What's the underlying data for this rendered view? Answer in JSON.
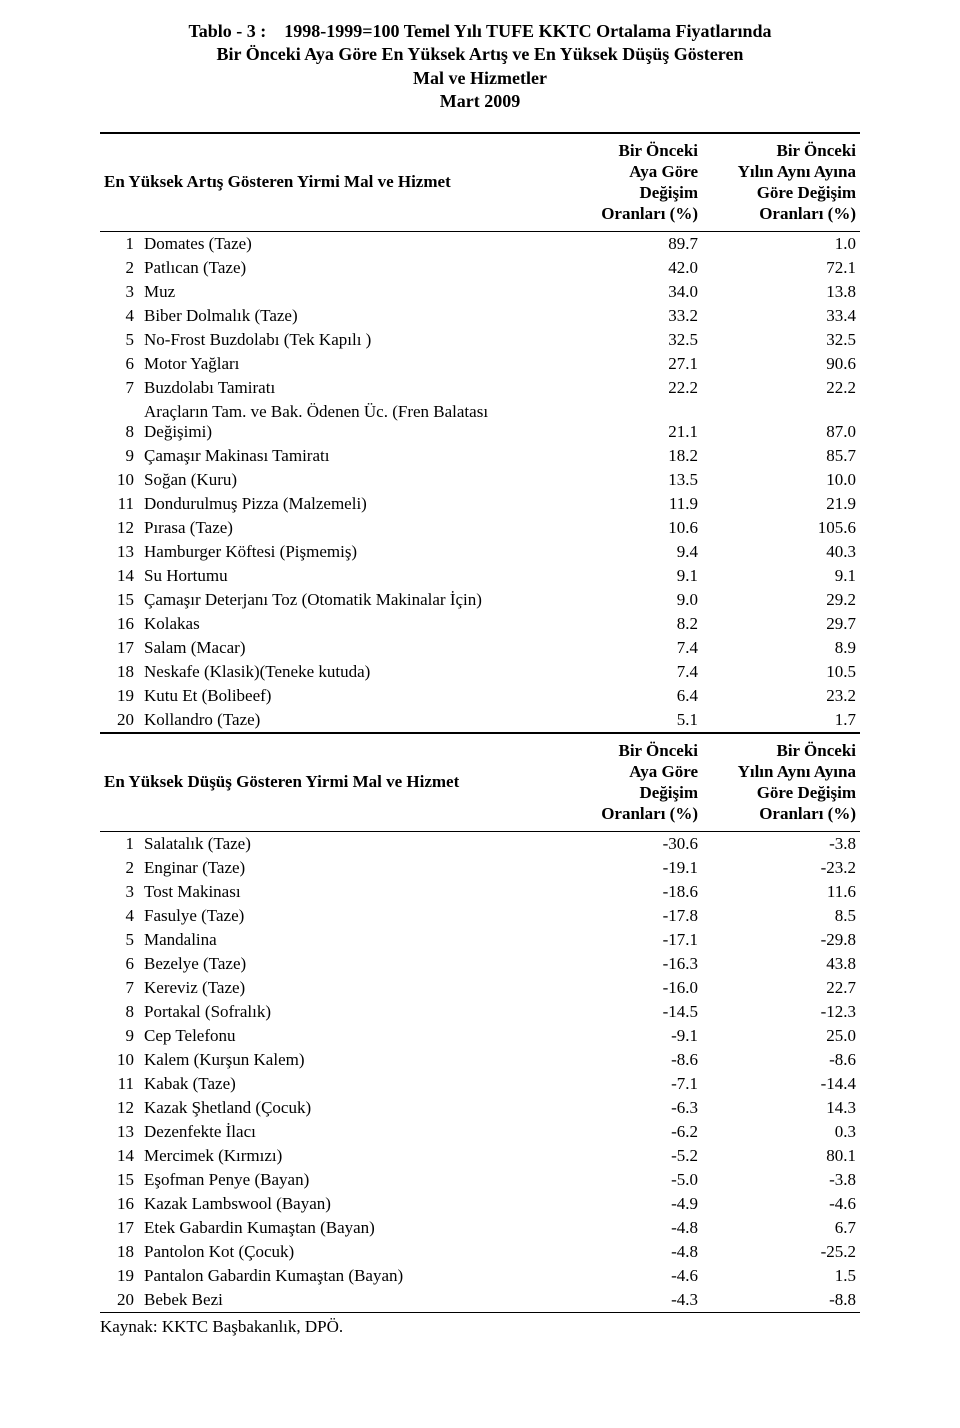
{
  "title": {
    "lead": "Tablo - 3 :",
    "line1": "1998-1999=100 Temel Yılı TUFE KKTC Ortalama Fiyatlarında",
    "line2": "Bir Önceki Aya Göre En Yüksek Artış ve En Yüksek Düşüş Gösteren",
    "line3": "Mal ve Hizmetler",
    "line4": "Mart 2009"
  },
  "colors": {
    "background": "#ffffff",
    "text": "#000000",
    "rule": "#000000"
  },
  "typography": {
    "family": "Times New Roman",
    "title_fontsize": 18,
    "body_fontsize": 17
  },
  "columns": {
    "col1_l1": "Bir Önceki",
    "col1_l2": "Aya Göre",
    "col1_l3": "Değişim",
    "col1_l4": "Oranları (%)",
    "col2_l1": "Bir Önceki",
    "col2_l2": "Yılın Aynı Ayına",
    "col2_l3": "Göre Değişim",
    "col2_l4": "Oranları (%)"
  },
  "section1": {
    "label": "En Yüksek Artış Gösteren Yirmi Mal ve Hizmet",
    "rows": [
      {
        "n": "1",
        "name": "Domates (Taze)",
        "v1": "89.7",
        "v2": "1.0"
      },
      {
        "n": "2",
        "name": "Patlıcan (Taze)",
        "v1": "42.0",
        "v2": "72.1"
      },
      {
        "n": "3",
        "name": "Muz",
        "v1": "34.0",
        "v2": "13.8"
      },
      {
        "n": "4",
        "name": "Biber Dolmalık (Taze)",
        "v1": "33.2",
        "v2": "33.4"
      },
      {
        "n": "5",
        "name": "No-Frost Buzdolabı (Tek Kapılı )",
        "v1": "32.5",
        "v2": "32.5"
      },
      {
        "n": "6",
        "name": "Motor Yağları",
        "v1": "27.1",
        "v2": "90.6"
      },
      {
        "n": "7",
        "name": "Buzdolabı Tamiratı",
        "v1": "22.2",
        "v2": "22.2"
      },
      {
        "n": "8",
        "name": "Araçların Tam. ve Bak. Ödenen Üc. (Fren Balatası Değişimi)",
        "v1": "21.1",
        "v2": "87.0"
      },
      {
        "n": "9",
        "name": "Çamaşır Makinası Tamiratı",
        "v1": "18.2",
        "v2": "85.7"
      },
      {
        "n": "10",
        "name": "Soğan (Kuru)",
        "v1": "13.5",
        "v2": "10.0"
      },
      {
        "n": "11",
        "name": "Dondurulmuş Pizza (Malzemeli)",
        "v1": "11.9",
        "v2": "21.9"
      },
      {
        "n": "12",
        "name": "Pırasa (Taze)",
        "v1": "10.6",
        "v2": "105.6"
      },
      {
        "n": "13",
        "name": "Hamburger Köftesi (Pişmemiş)",
        "v1": "9.4",
        "v2": "40.3"
      },
      {
        "n": "14",
        "name": "Su Hortumu",
        "v1": "9.1",
        "v2": "9.1"
      },
      {
        "n": "15",
        "name": "Çamaşır Deterjanı Toz (Otomatik Makinalar İçin)",
        "v1": "9.0",
        "v2": "29.2"
      },
      {
        "n": "16",
        "name": "Kolakas",
        "v1": "8.2",
        "v2": "29.7"
      },
      {
        "n": "17",
        "name": "Salam (Macar)",
        "v1": "7.4",
        "v2": "8.9"
      },
      {
        "n": "18",
        "name": "Neskafe (Klasik)(Teneke kutuda)",
        "v1": "7.4",
        "v2": "10.5"
      },
      {
        "n": "19",
        "name": "Kutu Et (Bolibeef)",
        "v1": "6.4",
        "v2": "23.2"
      },
      {
        "n": "20",
        "name": "Kollandro (Taze)",
        "v1": "5.1",
        "v2": "1.7"
      }
    ]
  },
  "section2": {
    "label": "En Yüksek Düşüş Gösteren Yirmi Mal ve Hizmet",
    "rows": [
      {
        "n": "1",
        "name": "Salatalık (Taze)",
        "v1": "-30.6",
        "v2": "-3.8"
      },
      {
        "n": "2",
        "name": "Enginar (Taze)",
        "v1": "-19.1",
        "v2": "-23.2"
      },
      {
        "n": "3",
        "name": "Tost Makinası",
        "v1": "-18.6",
        "v2": "11.6"
      },
      {
        "n": "4",
        "name": "Fasulye (Taze)",
        "v1": "-17.8",
        "v2": "8.5"
      },
      {
        "n": "5",
        "name": "Mandalina",
        "v1": "-17.1",
        "v2": "-29.8"
      },
      {
        "n": "6",
        "name": "Bezelye (Taze)",
        "v1": "-16.3",
        "v2": "43.8"
      },
      {
        "n": "7",
        "name": "Kereviz (Taze)",
        "v1": "-16.0",
        "v2": "22.7"
      },
      {
        "n": "8",
        "name": "Portakal (Sofralık)",
        "v1": "-14.5",
        "v2": "-12.3"
      },
      {
        "n": "9",
        "name": "Cep Telefonu",
        "v1": "-9.1",
        "v2": "25.0"
      },
      {
        "n": "10",
        "name": "Kalem (Kurşun Kalem)",
        "v1": "-8.6",
        "v2": "-8.6"
      },
      {
        "n": "11",
        "name": "Kabak (Taze)",
        "v1": "-7.1",
        "v2": "-14.4"
      },
      {
        "n": "12",
        "name": "Kazak Şhetland (Çocuk)",
        "v1": "-6.3",
        "v2": "14.3"
      },
      {
        "n": "13",
        "name": "Dezenfekte İlacı",
        "v1": "-6.2",
        "v2": "0.3"
      },
      {
        "n": "14",
        "name": "Mercimek (Kırmızı)",
        "v1": "-5.2",
        "v2": "80.1"
      },
      {
        "n": "15",
        "name": "Eşofman Penye (Bayan)",
        "v1": "-5.0",
        "v2": "-3.8"
      },
      {
        "n": "16",
        "name": "Kazak Lambswool (Bayan)",
        "v1": "-4.9",
        "v2": "-4.6"
      },
      {
        "n": "17",
        "name": "Etek Gabardin Kumaştan (Bayan)",
        "v1": "-4.8",
        "v2": "6.7"
      },
      {
        "n": "18",
        "name": "Pantolon Kot (Çocuk)",
        "v1": "-4.8",
        "v2": "-25.2"
      },
      {
        "n": "19",
        "name": "Pantalon Gabardin Kumaştan (Bayan)",
        "v1": "-4.6",
        "v2": "1.5"
      },
      {
        "n": "20",
        "name": "Bebek Bezi",
        "v1": "-4.3",
        "v2": "-8.8"
      }
    ]
  },
  "source": "Kaynak: KKTC Başbakanlık, DPÖ."
}
